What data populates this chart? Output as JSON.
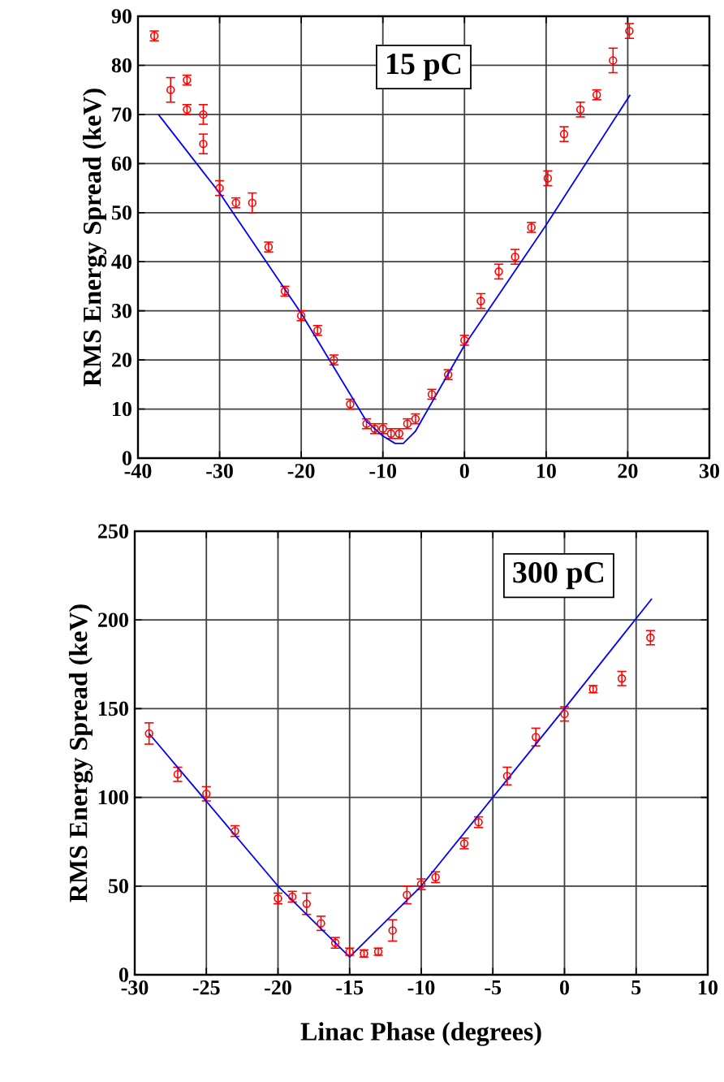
{
  "chart_data": [
    {
      "type": "scatter",
      "ylabel": "RMS Energy Spread (keV)",
      "annotations": [
        "15 pC"
      ],
      "xlim": [
        -40,
        30
      ],
      "xticks": [
        -40,
        -30,
        -20,
        -10,
        0,
        10,
        20,
        30
      ],
      "ylim": [
        0,
        90
      ],
      "yticks": [
        0,
        10,
        20,
        30,
        40,
        50,
        60,
        70,
        80,
        90
      ],
      "grid": true,
      "marker": "circle",
      "series": [
        {
          "color": "#ff0000",
          "x": [
            -38,
            -36,
            -34,
            -34,
            -32,
            -32,
            -30,
            -28,
            -26,
            -24,
            -22,
            -20,
            -18,
            -16,
            -14,
            -12,
            -11,
            -10,
            -9,
            -8,
            -7,
            -6,
            -4,
            -2,
            0,
            2,
            4.2,
            6.2,
            8.2,
            10.2,
            12.2,
            14.2,
            16.2,
            18.2,
            20.2
          ],
          "values": [
            86,
            75,
            77,
            71,
            70,
            64,
            55,
            52,
            52,
            43,
            34,
            29,
            26,
            20,
            11,
            7,
            6,
            6,
            5,
            5,
            7,
            8,
            13,
            17,
            24,
            32,
            38,
            41,
            47,
            57,
            66,
            71,
            74,
            81,
            87
          ],
          "errors": [
            1,
            2.5,
            1,
            1,
            2,
            2,
            1.5,
            1,
            2,
            1,
            1,
            1,
            1,
            1,
            1,
            1,
            1,
            1,
            1,
            1,
            1,
            1,
            1,
            1,
            1,
            1.5,
            1.5,
            1.5,
            1,
            1.5,
            1.5,
            1.5,
            1,
            2.5,
            1.5
          ]
        },
        {
          "type": "line",
          "color": "#0000ff",
          "marker": "none",
          "x": [
            -37.5,
            -30,
            -20,
            -12,
            -10,
            -8.5,
            -7.5,
            -6,
            0,
            10,
            20.3
          ],
          "values": [
            70,
            54,
            29.5,
            7.5,
            4.5,
            3,
            3,
            5.5,
            23,
            47.5,
            74
          ]
        }
      ]
    },
    {
      "type": "scatter",
      "xlabel": "Linac Phase (degrees)",
      "ylabel": "RMS Energy Spread (keV)",
      "annotations": [
        "300 pC"
      ],
      "xlim": [
        -30,
        10
      ],
      "xticks": [
        -30,
        -25,
        -20,
        -15,
        -10,
        -5,
        0,
        5,
        10
      ],
      "ylim": [
        0,
        250
      ],
      "yticks": [
        0,
        50,
        100,
        150,
        200,
        250
      ],
      "grid": true,
      "marker": "circle",
      "series": [
        {
          "color": "#ff0000",
          "x": [
            -29,
            -27,
            -25,
            -23,
            -20,
            -19,
            -18,
            -17,
            -16,
            -15,
            -14,
            -13,
            -12,
            -11,
            -10,
            -9,
            -7,
            -6,
            -4,
            -2,
            0,
            2,
            4,
            6
          ],
          "values": [
            136,
            113,
            102,
            81,
            43,
            44,
            40,
            29,
            18,
            13,
            12,
            13,
            25,
            45,
            51,
            55,
            74,
            86,
            112,
            134,
            147,
            161,
            167,
            190
          ],
          "errors": [
            6,
            4,
            4,
            3,
            3,
            3,
            6,
            4,
            3,
            2,
            2,
            2,
            6,
            5,
            3,
            3,
            3,
            3,
            5,
            5,
            4,
            2,
            4,
            4
          ]
        },
        {
          "type": "line",
          "color": "#0000ff",
          "marker": "none",
          "x": [
            -29,
            -20,
            -15,
            -10,
            0,
            6.1
          ],
          "values": [
            136,
            50,
            10,
            50,
            150,
            212
          ]
        }
      ]
    }
  ]
}
